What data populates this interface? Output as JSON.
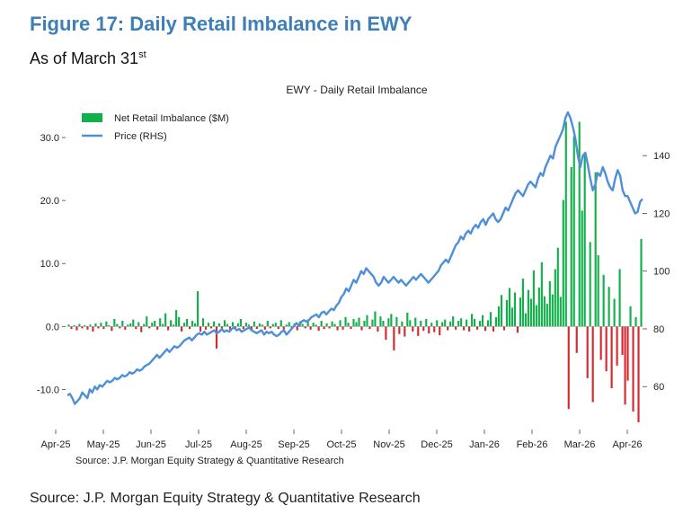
{
  "figure": {
    "title": "Figure 17: Daily Retail Imbalance in EWY",
    "subtitle": "As of March 31",
    "subtitle_sup": "st",
    "source": "Source: J.P. Morgan Equity Strategy & Quantitative Research"
  },
  "chart_data": {
    "type": "bar",
    "title": "EWY - Daily Retail Imbalance",
    "inner_source": "Source: J.P. Morgan Equity Strategy & Quantitative Research",
    "xlabel": "",
    "ylabel": "",
    "x_tick_labels": [
      "Apr-25",
      "May-25",
      "Jun-25",
      "Jul-25",
      "Aug-25",
      "Sep-25",
      "Oct-25",
      "Nov-25",
      "Dec-25",
      "Jan-26",
      "Feb-26",
      "Mar-26",
      "Apr-26"
    ],
    "y_left": {
      "ticks": [
        -10,
        0,
        10,
        20,
        30
      ],
      "tick_labels": [
        "-10.0",
        "0.0",
        "10.0",
        "20.0",
        "30.0"
      ],
      "range": [
        -15.5,
        34
      ]
    },
    "y_right": {
      "ticks": [
        60,
        80,
        100,
        120,
        140
      ],
      "tick_labels": [
        "60",
        "80",
        "100",
        "120",
        "140"
      ],
      "range": [
        47,
        155
      ]
    },
    "legend": {
      "placement": "top-left"
    },
    "colors": {
      "positive": "#12b04a",
      "negative": "#d6282f",
      "price": "#4f8fd8"
    },
    "series": [
      {
        "name": "Net Retail Imbalance ($M)",
        "axis": "left",
        "note": "daily values, one per trading day, sampled approximately",
        "values": [
          0.3,
          -0.4,
          0.2,
          -0.6,
          0.4,
          -0.3,
          0.2,
          -0.5,
          0.3,
          -0.8,
          0.5,
          -0.3,
          0.6,
          -0.4,
          0.8,
          0.2,
          -0.7,
          1.2,
          0.4,
          -0.3,
          0.9,
          -0.5,
          0.3,
          0.5,
          1.1,
          -0.4,
          0.7,
          -0.9,
          0.4,
          1.6,
          -0.3,
          0.6,
          0.9,
          -0.5,
          1.3,
          0.4,
          2.1,
          -0.6,
          1.0,
          0.3,
          2.6,
          1.5,
          -0.8,
          0.6,
          1.2,
          -0.4,
          0.9,
          0.5,
          5.6,
          -0.8,
          1.3,
          -0.5,
          0.6,
          -0.3,
          0.8,
          -3.5,
          0.5,
          -0.7,
          1.0,
          0.4,
          -0.5,
          0.7,
          -0.3,
          0.5,
          1.2,
          -0.4,
          0.6,
          0.3,
          -0.6,
          0.8,
          -0.4,
          0.5,
          0.3,
          -0.5,
          0.9,
          -0.3,
          0.4,
          0.6,
          -0.4,
          1.0,
          -0.5,
          0.3,
          0.7,
          -0.3,
          0.5,
          -0.6,
          0.8,
          0.4,
          -0.3,
          1.1,
          -0.5,
          0.6,
          0.3,
          -0.7,
          0.9,
          -0.4,
          0.5,
          -0.3,
          0.8,
          0.4,
          -0.6,
          1.0,
          -0.5,
          1.5,
          0.6,
          -0.4,
          1.2,
          0.7,
          1.4,
          -0.6,
          0.9,
          1.8,
          -0.4,
          1.1,
          2.4,
          -0.8,
          1.6,
          0.9,
          -2.1,
          1.3,
          2.0,
          -3.8,
          1.5,
          -1.2,
          0.8,
          -1.6,
          2.2,
          1.0,
          -0.8,
          1.4,
          -1.5,
          0.9,
          -0.7,
          1.2,
          -1.1,
          0.6,
          -0.9,
          1.0,
          -1.4,
          0.7,
          1.1,
          -0.6,
          0.8,
          1.6,
          -0.5,
          0.9,
          1.3,
          -0.6,
          1.1,
          -0.8,
          2.0,
          1.2,
          -0.5,
          0.9,
          1.8,
          -0.7,
          1.0,
          2.3,
          -0.8,
          1.5,
          3.2,
          5.0,
          -0.6,
          4.2,
          6.1,
          3.0,
          5.4,
          -1.0,
          4.6,
          7.6,
          2.1,
          5.8,
          4.4,
          8.9,
          3.4,
          6.2,
          10.2,
          4.8,
          3.6,
          7.2,
          5.1,
          9.1,
          12.5,
          4.7,
          20.1,
          32.5,
          -13.1,
          25.3,
          30.2,
          -4.2,
          32.5,
          18.4,
          27.2,
          -8.2,
          13.4,
          -12.0,
          24.5,
          11.3,
          -5.3,
          8.2,
          -7.1,
          6.3,
          -9.8,
          4.4,
          -6.2,
          9.1,
          -4.5,
          -12.4,
          -8.6,
          3.2,
          -13.5,
          1.5,
          -15.2,
          13.9
        ]
      },
      {
        "name": "Price (RHS)",
        "axis": "right",
        "note": "daily closing price, sampled approximately",
        "values": [
          57,
          57.5,
          56,
          54,
          55,
          56,
          58,
          57,
          56,
          59,
          58,
          60,
          59,
          60.5,
          60,
          61,
          62,
          61.5,
          62,
          63,
          62.5,
          63,
          64,
          63.5,
          64,
          65,
          64.5,
          65,
          66,
          65.5,
          66,
          67,
          67.5,
          68,
          69,
          70,
          71,
          70,
          71,
          72,
          73,
          72,
          73,
          74,
          73.5,
          74,
          75,
          76,
          76.5,
          77,
          76,
          77,
          78,
          78.5,
          78,
          79,
          78,
          78.5,
          79,
          79.5,
          78.5,
          79,
          80,
          79,
          79.5,
          79,
          80,
          80.5,
          79.5,
          80,
          79,
          79.5,
          80,
          80.5,
          79.5,
          79,
          78.5,
          79,
          79.5,
          78,
          79,
          78.5,
          79,
          78,
          77.5,
          78,
          79,
          79.5,
          78,
          79,
          80,
          81,
          82,
          81,
          82.5,
          83,
          82.5,
          83,
          84,
          84.5,
          85,
          84,
          85.5,
          86,
          85,
          86,
          87,
          86.5,
          88,
          89,
          91,
          92,
          94,
          93,
          95,
          97,
          96,
          98,
          100,
          99,
          101,
          100,
          99,
          98,
          96,
          95,
          96,
          98,
          97,
          96,
          97,
          98,
          97,
          96,
          97,
          96,
          95,
          96,
          97,
          98,
          97,
          98,
          99,
          98,
          97,
          96,
          97,
          98,
          99,
          100,
          102,
          103,
          104,
          103,
          105,
          107,
          109,
          110,
          112,
          111,
          113,
          114,
          113,
          115,
          116,
          115,
          117,
          118,
          116,
          118,
          119,
          120,
          118,
          117,
          118,
          120,
          122,
          121,
          123,
          125,
          127,
          128,
          127,
          126,
          128,
          130,
          131,
          130,
          129,
          132,
          134,
          133,
          136,
          138,
          140,
          139,
          143,
          145,
          147,
          149,
          153,
          155,
          153,
          150,
          146,
          140,
          136,
          140,
          141,
          137,
          132,
          128,
          130,
          134,
          133,
          136,
          134,
          131,
          129,
          128,
          132,
          135,
          133,
          128,
          126,
          126,
          124,
          122,
          120,
          120.5,
          124,
          125
        ]
      }
    ]
  }
}
